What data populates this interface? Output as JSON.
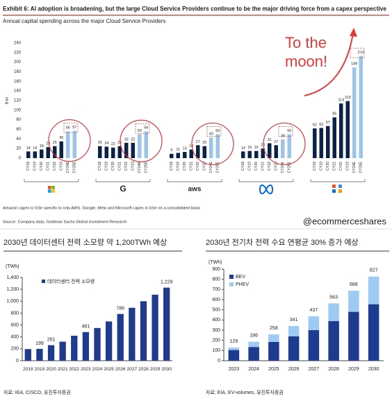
{
  "chart_data": [
    {
      "type": "grouped_bar",
      "title": "Exhibit 6: AI adoption is broadening, but the large Cloud Service Providers continue to be the major driving force from a capex perspective",
      "subtitle": "Annual capital spending across the major Cloud Service Providers",
      "ylabel": "$ bn",
      "categories": [
        "CY18",
        "CY19",
        "CY20",
        "CY21",
        "CY22",
        "CY23",
        "CY24E",
        "CY25E"
      ],
      "bar_colors": [
        "#0b2347",
        "#0b2347",
        "#0b2347",
        "#0b2347",
        "#0b2347",
        "#0b2347",
        "#9dc3e6",
        "#9dc3e6"
      ],
      "groups": [
        {
          "label": null,
          "values": [
            14,
            14,
            18,
            23,
            25,
            35,
            56,
            57
          ]
        },
        {
          "label": "G",
          "values": [
            25,
            24,
            22,
            25,
            32,
            32,
            50,
            56
          ]
        },
        {
          "label": "aws",
          "values": [
            9,
            11,
            13,
            18,
            27,
            25,
            43,
            50
          ]
        },
        {
          "label": null,
          "values": [
            14,
            15,
            15,
            20,
            31,
            27,
            39,
            50
          ]
        },
        {
          "label": null,
          "values": [
            62,
            63,
            67,
            85,
            114,
            119,
            189,
            213
          ]
        }
      ],
      "ylim": [
        0,
        240
      ],
      "yticks": [
        0,
        20,
        40,
        60,
        80,
        100,
        120,
        140,
        160,
        180,
        200,
        220,
        240
      ],
      "annotation": "To the moon!",
      "footnote": "Amazon capex is GSe specific to only AWS. Google, Meta and Microsoft capex is GSe on a consolidated basis",
      "source": "Source: Company data, Goldman Sachs Global Investment Research",
      "handle": "@ecommerceshares"
    },
    {
      "type": "bar",
      "title": "2030년 데이터센터 전력 소모량 약 1,200TWh 예상",
      "unit": "(TWh)",
      "categories": [
        "2018",
        "2019",
        "2020",
        "2021",
        "2022",
        "2023",
        "2024",
        "2025",
        "2026",
        "2027",
        "2028",
        "2029",
        "2030"
      ],
      "series": [
        {
          "name": "데이터센터 전력 소모량",
          "color": "#1f3b8f",
          "values": [
            195,
            199,
            261,
            320,
            420,
            481,
            550,
            660,
            786,
            890,
            1000,
            1110,
            1229
          ],
          "value_labels": [
            null,
            "199",
            "261",
            null,
            null,
            "481",
            null,
            null,
            "786",
            null,
            null,
            null,
            "1,229"
          ]
        }
      ],
      "ylim": [
        0,
        1400
      ],
      "yticks": [
        0,
        200,
        400,
        600,
        800,
        {
          "value": 1000,
          "label": "1,000"
        },
        {
          "value": 1200,
          "label": "1,200"
        },
        {
          "value": 1400,
          "label": "1,400"
        }
      ],
      "source": "자료: IEA, CISCO, 유진투자증권"
    },
    {
      "type": "stacked_bar",
      "title": "2030년 전기차 전력 수요 연평균 30% 증가 예상",
      "unit": "(TWh)",
      "categories": [
        "2023",
        "2024",
        "2025",
        "2026",
        "2027",
        "2028",
        "2029",
        "2030"
      ],
      "series": [
        {
          "name": "BEV",
          "color": "#1f3b8f",
          "values": [
            105,
            135,
            185,
            240,
            300,
            390,
            480,
            555
          ]
        },
        {
          "name": "PHEV",
          "color": "#9ecbf3",
          "values": [
            24,
            51,
            73,
            101,
            137,
            173,
            208,
            272
          ]
        }
      ],
      "totals": [
        129,
        186,
        258,
        341,
        437,
        563,
        688,
        827
      ],
      "ylim": [
        0,
        900
      ],
      "yticks": [
        0,
        100,
        200,
        300,
        400,
        500,
        600,
        700,
        800,
        900
      ],
      "source": "자료: EIA, EV-volumes, 유진투자증권"
    }
  ]
}
